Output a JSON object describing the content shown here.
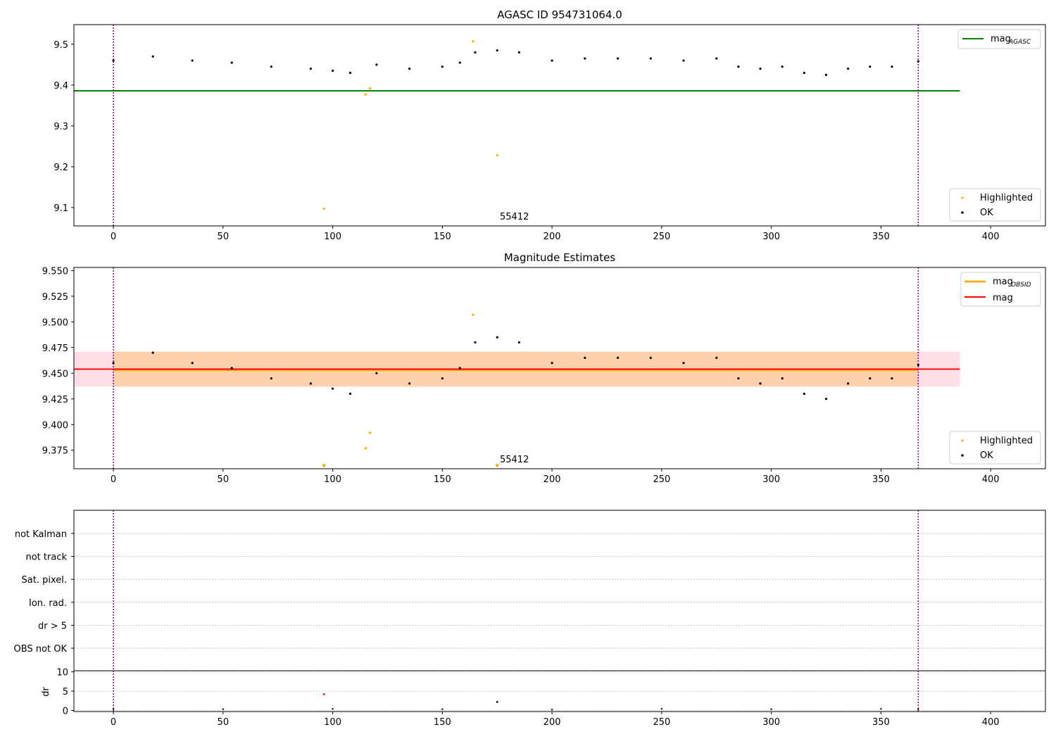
{
  "chart_data": [
    {
      "type": "scatter",
      "title": "AGASC ID 954731064.0",
      "xlim": [
        -18,
        425
      ],
      "ylim": [
        9.055,
        9.548
      ],
      "xticks": [
        "0",
        "50",
        "100",
        "150",
        "200",
        "250",
        "300",
        "350",
        "400"
      ],
      "yticks": [
        "9.1",
        "9.2",
        "9.3",
        "9.4",
        "9.5"
      ],
      "vlines": [
        0,
        367
      ],
      "hline": {
        "y": 9.386,
        "x_range": [
          -18,
          386
        ],
        "color": "#008000"
      },
      "annotation": {
        "text": "55412",
        "x": 176,
        "y": 9.07
      },
      "legend_lines": [
        {
          "label": "mag",
          "sub": "AGASC",
          "color": "#008000"
        }
      ],
      "legend_markers": [
        {
          "label": "Highlighted",
          "color": "#ffa500"
        },
        {
          "label": "OK",
          "color": "#000000"
        }
      ],
      "series": [
        {
          "name": "OK",
          "color": "#000000",
          "x": [
            0,
            18,
            36,
            54,
            72,
            90,
            100,
            108,
            120,
            135,
            150,
            158,
            165,
            175,
            185,
            200,
            215,
            230,
            245,
            260,
            275,
            285,
            295,
            305,
            315,
            325,
            335,
            345,
            355,
            367
          ],
          "y": [
            9.46,
            9.47,
            9.46,
            9.455,
            9.445,
            9.44,
            9.435,
            9.43,
            9.45,
            9.44,
            9.445,
            9.455,
            9.48,
            9.485,
            9.48,
            9.46,
            9.465,
            9.465,
            9.465,
            9.46,
            9.465,
            9.445,
            9.44,
            9.445,
            9.43,
            9.425,
            9.44,
            9.445,
            9.445,
            9.458
          ]
        },
        {
          "name": "Highlighted",
          "color": "#ffa500",
          "x": [
            96,
            115,
            117,
            164,
            175
          ],
          "y": [
            9.097,
            9.377,
            9.392,
            9.507,
            9.228
          ]
        }
      ]
    },
    {
      "type": "scatter",
      "title": "Magnitude Estimates",
      "xlim": [
        -18,
        425
      ],
      "ylim": [
        9.357,
        9.553
      ],
      "xticks": [
        "0",
        "50",
        "100",
        "150",
        "200",
        "250",
        "300",
        "350",
        "400"
      ],
      "yticks": [
        "9.375",
        "9.400",
        "9.425",
        "9.450",
        "9.475",
        "9.500",
        "9.525",
        "9.550"
      ],
      "vlines": [
        0,
        367
      ],
      "band": {
        "y0": 9.437,
        "y1": 9.471,
        "x_range": [
          -18,
          386
        ]
      },
      "mag": 9.454,
      "mag_obsid": 9.453,
      "annotation": {
        "text": "55412",
        "x": 176,
        "y": 9.362
      },
      "legend_lines": [
        {
          "label": "mag",
          "sub": "OBSID",
          "color": "#ffa500"
        },
        {
          "label": "mag",
          "sub": "",
          "color": "#ff0000"
        }
      ],
      "legend_markers": [
        {
          "label": "Highlighted",
          "color": "#ffa500"
        },
        {
          "label": "OK",
          "color": "#000000"
        }
      ],
      "series": [
        {
          "name": "OK",
          "color": "#000000",
          "x": [
            0,
            18,
            36,
            54,
            72,
            90,
            100,
            108,
            120,
            135,
            150,
            158,
            165,
            175,
            185,
            200,
            215,
            230,
            245,
            260,
            275,
            285,
            295,
            305,
            315,
            325,
            335,
            345,
            355,
            367
          ],
          "y": [
            9.46,
            9.47,
            9.46,
            9.455,
            9.445,
            9.44,
            9.435,
            9.43,
            9.45,
            9.44,
            9.445,
            9.455,
            9.48,
            9.485,
            9.48,
            9.46,
            9.465,
            9.465,
            9.465,
            9.46,
            9.465,
            9.445,
            9.44,
            9.445,
            9.43,
            9.425,
            9.44,
            9.445,
            9.445,
            9.458
          ]
        },
        {
          "name": "Highlighted",
          "color": "#ffa500",
          "x": [
            115,
            117,
            164
          ],
          "y": [
            9.377,
            9.392,
            9.507
          ]
        },
        {
          "name": "Highlighted (off-scale)",
          "color": "#ffa500",
          "marker": "triangle-down",
          "x": [
            96,
            175
          ],
          "y": [
            9.358,
            9.358
          ]
        }
      ]
    },
    {
      "type": "scatter",
      "title": "",
      "xlim": [
        -18,
        425
      ],
      "categories": [
        "not Kalman",
        "not track",
        "Sat. pixel.",
        "Ion. rad.",
        "dr > 5",
        "OBS not OK"
      ],
      "vlines": [
        0,
        367
      ],
      "flags": []
    },
    {
      "type": "scatter",
      "title": "",
      "ylabel": "dr",
      "xlim": [
        -18,
        425
      ],
      "ylim": [
        -0.3,
        10.3
      ],
      "xticks": [
        "0",
        "50",
        "100",
        "150",
        "200",
        "250",
        "300",
        "350",
        "400"
      ],
      "yticks": [
        "0",
        "5",
        "10"
      ],
      "vlines": [
        0,
        367
      ],
      "series": [
        {
          "name": "dr",
          "color": "#000000",
          "x": [
            0,
            50,
            100,
            150,
            200,
            250,
            300,
            350,
            367
          ],
          "y": [
            0.3,
            0.3,
            0.4,
            0.3,
            0.2,
            0.4,
            0.3,
            0.4,
            0.3
          ]
        },
        {
          "name": "dr highlighted",
          "color": "#ff0000",
          "x": [
            96
          ],
          "y": [
            4.2
          ]
        },
        {
          "name": "dr spike",
          "color": "#000000",
          "x": [
            175
          ],
          "y": [
            2.2
          ]
        }
      ]
    }
  ]
}
